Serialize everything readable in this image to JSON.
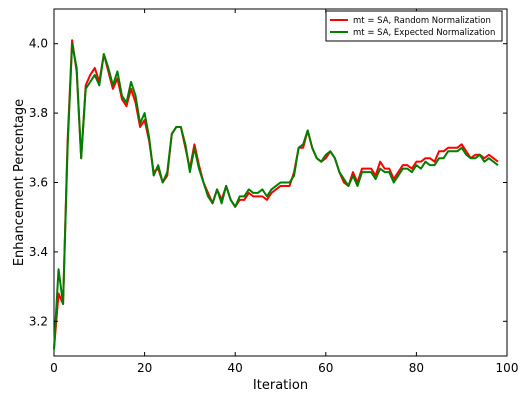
{
  "chart_data": {
    "type": "line",
    "title": "",
    "xlabel": "Iteration",
    "ylabel": "Enhancement Percentage",
    "xlim": [
      0,
      100
    ],
    "ylim": [
      3.1,
      4.1
    ],
    "xticks": [
      0,
      20,
      40,
      60,
      80,
      100
    ],
    "yticks": [
      3.2,
      3.4,
      3.6,
      3.8,
      4.0
    ],
    "xtick_labels": [
      "0",
      "20",
      "40",
      "60",
      "80",
      "100"
    ],
    "ytick_labels": [
      "3.2",
      "3.4",
      "3.6",
      "3.8",
      "4.0"
    ],
    "grid": false,
    "legend_position": "top-right",
    "series": [
      {
        "name": "mt = SA, Random Normalization",
        "color": "#ff0000",
        "values": [
          3.12,
          3.28,
          3.25,
          3.72,
          4.01,
          3.92,
          3.67,
          3.88,
          3.91,
          3.93,
          3.89,
          3.97,
          3.92,
          3.87,
          3.9,
          3.84,
          3.82,
          3.87,
          3.83,
          3.76,
          3.78,
          3.72,
          3.63,
          3.64,
          3.6,
          3.62,
          3.74,
          3.76,
          3.76,
          3.7,
          3.64,
          3.71,
          3.65,
          3.6,
          3.57,
          3.54,
          3.58,
          3.55,
          3.59,
          3.55,
          3.53,
          3.55,
          3.55,
          3.57,
          3.56,
          3.56,
          3.56,
          3.55,
          3.57,
          3.58,
          3.59,
          3.59,
          3.59,
          3.63,
          3.7,
          3.7,
          3.75,
          3.7,
          3.67,
          3.66,
          3.67,
          3.69,
          3.67,
          3.63,
          3.6,
          3.59,
          3.63,
          3.6,
          3.64,
          3.64,
          3.64,
          3.62,
          3.66,
          3.64,
          3.64,
          3.61,
          3.63,
          3.65,
          3.65,
          3.64,
          3.66,
          3.66,
          3.67,
          3.67,
          3.66,
          3.69,
          3.69,
          3.7,
          3.7,
          3.7,
          3.71,
          3.69,
          3.67,
          3.68,
          3.68,
          3.67,
          3.68,
          3.67,
          3.66
        ]
      },
      {
        "name": "mt = SA, Expected Normalization",
        "color": "#008000",
        "values": [
          3.12,
          3.35,
          3.25,
          3.7,
          4.0,
          3.93,
          3.67,
          3.87,
          3.89,
          3.91,
          3.88,
          3.97,
          3.93,
          3.88,
          3.92,
          3.85,
          3.83,
          3.89,
          3.85,
          3.77,
          3.8,
          3.73,
          3.62,
          3.65,
          3.6,
          3.63,
          3.74,
          3.76,
          3.76,
          3.71,
          3.63,
          3.7,
          3.64,
          3.6,
          3.56,
          3.54,
          3.58,
          3.54,
          3.59,
          3.55,
          3.53,
          3.56,
          3.56,
          3.58,
          3.57,
          3.57,
          3.58,
          3.56,
          3.58,
          3.59,
          3.6,
          3.6,
          3.6,
          3.62,
          3.7,
          3.71,
          3.75,
          3.7,
          3.67,
          3.66,
          3.68,
          3.69,
          3.67,
          3.63,
          3.61,
          3.59,
          3.62,
          3.59,
          3.63,
          3.63,
          3.63,
          3.61,
          3.64,
          3.63,
          3.63,
          3.6,
          3.62,
          3.64,
          3.64,
          3.63,
          3.65,
          3.64,
          3.66,
          3.65,
          3.65,
          3.67,
          3.67,
          3.69,
          3.69,
          3.69,
          3.7,
          3.68,
          3.67,
          3.67,
          3.68,
          3.66,
          3.67,
          3.66,
          3.65
        ]
      }
    ]
  }
}
